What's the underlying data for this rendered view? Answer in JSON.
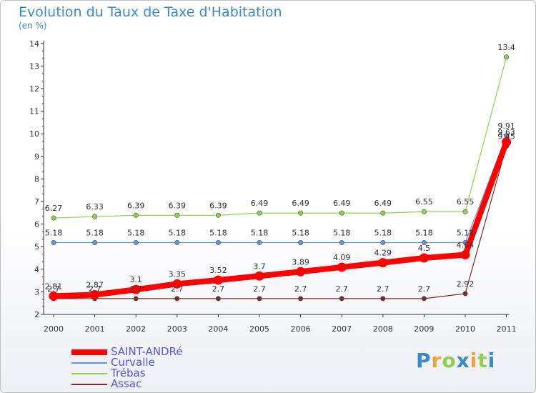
{
  "chart_data": {
    "type": "line",
    "title": "Evolution du Taux de Taxe d'Habitation",
    "subtitle": "(en %)",
    "x": [
      "2000",
      "2001",
      "2002",
      "2003",
      "2004",
      "2005",
      "2006",
      "2007",
      "2008",
      "2009",
      "2010",
      "2011"
    ],
    "ylim": [
      2,
      14
    ],
    "yticks": [
      "2",
      "3",
      "4",
      "5",
      "6",
      "7",
      "8",
      "9",
      "10",
      "11",
      "12",
      "13",
      "14"
    ],
    "grid": false,
    "legend_position": "bottom-left",
    "series": [
      {
        "name": "SAINT-ANDRé",
        "color": "#ff0000",
        "values": [
          2.81,
          2.87,
          3.1,
          3.35,
          3.52,
          3.7,
          3.89,
          4.09,
          4.29,
          4.5,
          4.64,
          9.63
        ],
        "labels": [
          "2.81",
          "2.87",
          "3.1",
          "3.35",
          "3.52",
          "3.7",
          "3.89",
          "4.09",
          "4.29",
          "4.5",
          "4.64",
          "9.63"
        ]
      },
      {
        "name": "Curvalle",
        "color": "#5b9bd5",
        "values": [
          5.18,
          5.18,
          5.18,
          5.18,
          5.18,
          5.18,
          5.18,
          5.18,
          5.18,
          5.18,
          5.18,
          9.91
        ],
        "labels": [
          "5.18",
          "5.18",
          "5.18",
          "5.18",
          "5.18",
          "5.18",
          "5.18",
          "5.18",
          "5.18",
          "5.18",
          "5.18",
          "9.91"
        ]
      },
      {
        "name": "Trébas",
        "color": "#8fd14f",
        "values": [
          6.27,
          6.33,
          6.39,
          6.39,
          6.39,
          6.49,
          6.49,
          6.49,
          6.49,
          6.55,
          6.55,
          13.4
        ],
        "labels": [
          "6.27",
          "6.33",
          "6.39",
          "6.39",
          "6.39",
          "6.49",
          "6.49",
          "6.49",
          "6.49",
          "6.55",
          "6.55",
          "13.4"
        ]
      },
      {
        "name": "Assac",
        "color": "#7a2a2a",
        "values": [
          2.7,
          2.7,
          2.7,
          2.7,
          2.7,
          2.7,
          2.7,
          2.7,
          2.7,
          2.7,
          2.92,
          9.45
        ],
        "labels": [
          "2.7",
          "2.7",
          "2.7",
          "2.7",
          "2.7",
          "2.7",
          "2.7",
          "2.7",
          "2.7",
          "2.7",
          "2.92",
          "9.45"
        ]
      }
    ]
  },
  "logo": {
    "letters": [
      "P",
      "r",
      "o",
      "x",
      "i",
      "t",
      "i"
    ],
    "colors": [
      "#3a8ac9",
      "#f2a23c",
      "#8fd14f",
      "#3a8ac9",
      "#f2a23c",
      "#8fd14f",
      "#3a8ac9"
    ]
  }
}
